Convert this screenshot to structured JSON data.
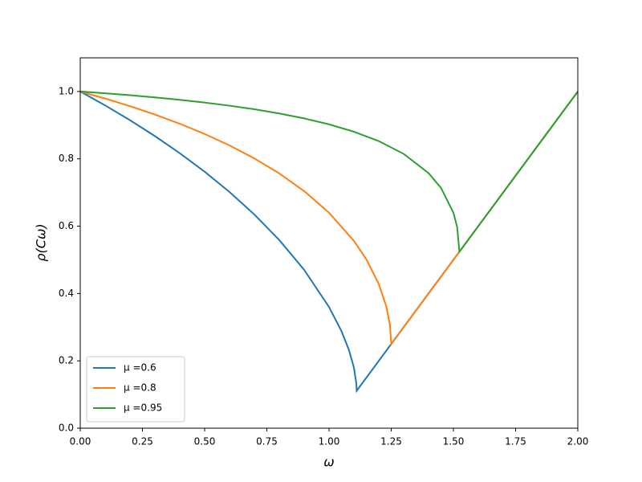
{
  "chart_data": {
    "type": "line",
    "xlabel": "ω",
    "ylabel": "ρ(Cω)",
    "xlim": [
      0,
      2
    ],
    "ylim": [
      0,
      1.1
    ],
    "xticks": [
      {
        "value": 0,
        "label": "0.00"
      },
      {
        "value": 0.25,
        "label": "0.25"
      },
      {
        "value": 0.5,
        "label": "0.50"
      },
      {
        "value": 0.75,
        "label": "0.75"
      },
      {
        "value": 1,
        "label": "1.00"
      },
      {
        "value": 1.25,
        "label": "1.25"
      },
      {
        "value": 1.5,
        "label": "1.50"
      },
      {
        "value": 1.75,
        "label": "1.75"
      },
      {
        "value": 2,
        "label": "2.00"
      }
    ],
    "yticks": [
      {
        "value": 0,
        "label": "0.0"
      },
      {
        "value": 0.2,
        "label": "0.2"
      },
      {
        "value": 0.4,
        "label": "0.4"
      },
      {
        "value": 0.6,
        "label": "0.6"
      },
      {
        "value": 0.8,
        "label": "0.8"
      },
      {
        "value": 1,
        "label": "1.0"
      }
    ],
    "legend": "lower left",
    "series": [
      {
        "name": "μ =0.6",
        "color": "#1f77b4",
        "x": [
          0,
          0.1,
          0.2,
          0.3,
          0.4,
          0.5,
          0.6,
          0.7,
          0.8,
          0.9,
          1.0,
          1.05,
          1.08,
          1.1,
          1.11,
          1.1111,
          2
        ],
        "values": [
          1,
          0.95875,
          0.91478,
          0.86766,
          0.81692,
          0.76185,
          0.70152,
          0.63457,
          0.55882,
          0.47034,
          0.36,
          0.28822,
          0.23236,
          0.18006,
          0.13163,
          0.1111,
          1
        ]
      },
      {
        "name": "μ =0.8",
        "color": "#ff7f0e",
        "x": [
          0,
          0.1,
          0.2,
          0.3,
          0.4,
          0.5,
          0.6,
          0.7,
          0.8,
          0.9,
          1.0,
          1.1,
          1.15,
          1.2,
          1.23,
          1.245,
          1.25,
          2
        ],
        "values": [
          1,
          0.97916,
          0.95648,
          0.93165,
          0.90431,
          0.87393,
          0.8399,
          0.80128,
          0.75674,
          0.7042,
          0.64,
          0.55643,
          0.50154,
          0.42818,
          0.3622,
          0.3056,
          0.25,
          1
        ]
      },
      {
        "name": "μ =0.95",
        "color": "#2ca02c",
        "x": [
          0,
          0.1,
          0.2,
          0.3,
          0.4,
          0.5,
          0.6,
          0.7,
          0.8,
          0.9,
          1.0,
          1.1,
          1.2,
          1.3,
          1.4,
          1.45,
          1.5,
          1.515,
          1.5241,
          2
        ],
        "values": [
          1,
          0.99475,
          0.98895,
          0.9825,
          0.97527,
          0.96713,
          0.95786,
          0.9472,
          0.93481,
          0.92016,
          0.9025,
          0.88067,
          0.85269,
          0.81477,
          0.75775,
          0.71382,
          0.64,
          0.59769,
          0.5241,
          1
        ]
      }
    ]
  }
}
